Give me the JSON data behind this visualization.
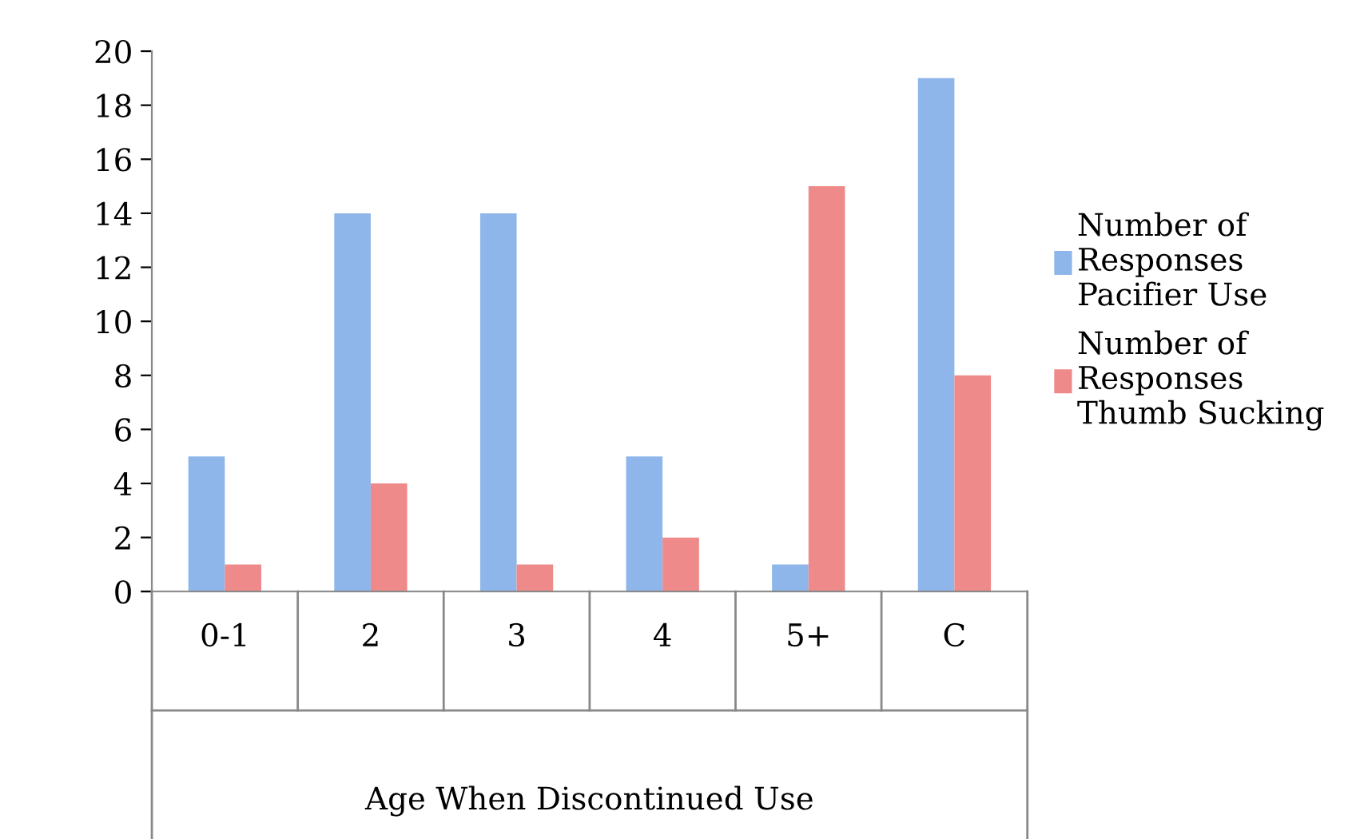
{
  "chart_data": {
    "type": "bar",
    "xlabel": "Age When Discontinued Use",
    "categories": [
      "0-1",
      "2",
      "3",
      "4",
      "5+",
      "C"
    ],
    "series": [
      {
        "name": "Number of\nResponses\nPacifier Use",
        "color": "#8fb6ea",
        "values": [
          5,
          14,
          14,
          5,
          1,
          19
        ]
      },
      {
        "name": "Number of\nResponses\nThumb Sucking",
        "color": "#ef8a8a",
        "values": [
          1,
          4,
          1,
          2,
          15,
          8
        ]
      }
    ],
    "ylim": [
      0,
      20
    ],
    "yticks": [
      0,
      2,
      4,
      6,
      8,
      10,
      12,
      14,
      16,
      18,
      20
    ],
    "grid": false,
    "legend": "right"
  }
}
